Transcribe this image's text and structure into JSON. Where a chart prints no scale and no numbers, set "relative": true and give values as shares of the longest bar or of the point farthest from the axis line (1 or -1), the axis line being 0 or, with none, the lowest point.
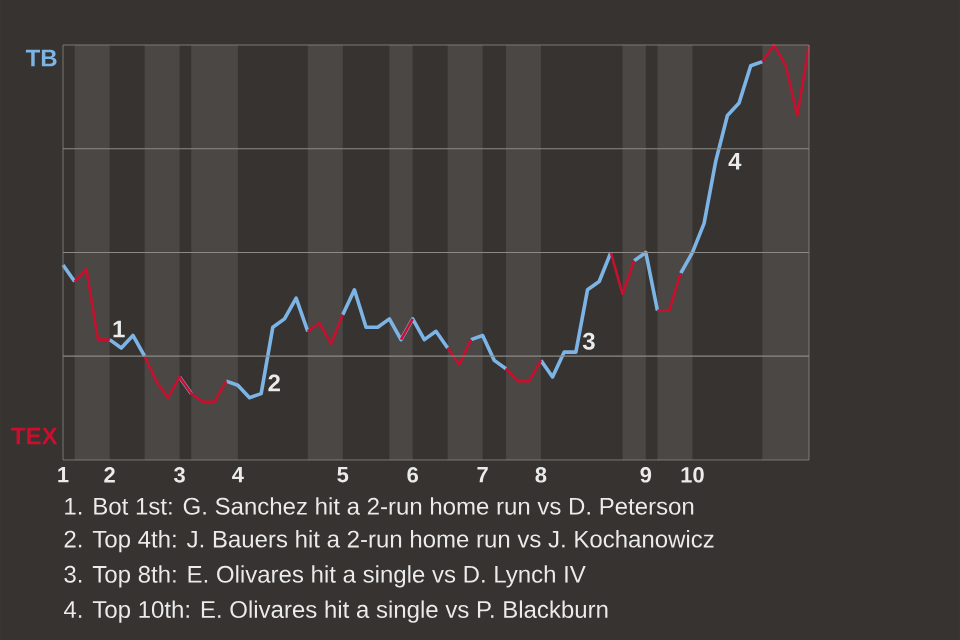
{
  "chart_data": {
    "type": "line",
    "relative": true,
    "categories": [
      "1",
      null,
      null,
      null,
      "2",
      null,
      null,
      null,
      null,
      null,
      "3",
      null,
      null,
      null,
      null,
      "4",
      null,
      null,
      null,
      null,
      null,
      null,
      null,
      null,
      "5",
      null,
      null,
      null,
      null,
      null,
      "6",
      null,
      null,
      null,
      null,
      null,
      "7",
      null,
      null,
      null,
      null,
      "8",
      null,
      null,
      null,
      null,
      null,
      null,
      null,
      null,
      "9",
      null,
      null,
      null,
      "10",
      null,
      null,
      null,
      null,
      null,
      null,
      null,
      null,
      null,
      null
    ],
    "series": [
      {
        "color": "#7db4e6",
        "values": [
          0.47,
          0.43,
          null,
          null,
          0.29,
          0.27,
          0.3,
          0.25,
          null,
          null,
          0.2,
          0.16,
          null,
          null,
          0.19,
          0.18,
          0.15,
          0.16,
          0.32,
          0.34,
          0.39,
          0.31,
          null,
          null,
          0.35,
          0.41,
          0.32,
          0.32,
          0.34,
          0.29,
          0.34,
          0.29,
          0.31,
          0.27,
          null,
          0.29,
          0.3,
          0.24,
          0.22,
          null,
          null,
          0.24,
          0.2,
          0.26,
          0.26,
          0.41,
          0.43,
          0.5,
          null,
          0.48,
          0.5,
          0.36,
          null,
          0.45,
          0.5,
          0.57,
          0.72,
          0.83,
          0.86,
          0.95,
          0.96,
          null,
          null,
          null,
          null
        ]
      },
      {
        "color": "#c8102e",
        "values": [
          null,
          0.43,
          0.46,
          0.29,
          0.29,
          null,
          null,
          0.25,
          0.19,
          0.15,
          0.2,
          0.16,
          0.14,
          0.14,
          0.19,
          null,
          null,
          null,
          null,
          null,
          null,
          0.31,
          0.33,
          0.28,
          0.35,
          null,
          null,
          null,
          null,
          0.29,
          0.34,
          null,
          null,
          0.27,
          0.23,
          0.29,
          null,
          null,
          0.22,
          0.19,
          0.19,
          0.24,
          null,
          null,
          null,
          null,
          null,
          0.5,
          0.4,
          0.48,
          null,
          0.36,
          0.36,
          0.45,
          null,
          null,
          null,
          null,
          null,
          null,
          0.96,
          1.0,
          0.95,
          0.83,
          1.0
        ]
      }
    ],
    "grid": "y",
    "line_style": "solid",
    "annotations": [
      "TB",
      "TEX",
      "1",
      "2",
      "3",
      "4",
      "1. Bot 1st: G. Sanchez hit a 2-run home run vs D. Peterson",
      "2. Top 4th: J. Bauers hit a 2-run home run vs J. Kochanowicz",
      "3. Top 8th: E. Olivares hit a single vs D. Lynch IV",
      "4. Top 10th: E. Olivares hit a single vs P. Blackburn"
    ]
  }
}
